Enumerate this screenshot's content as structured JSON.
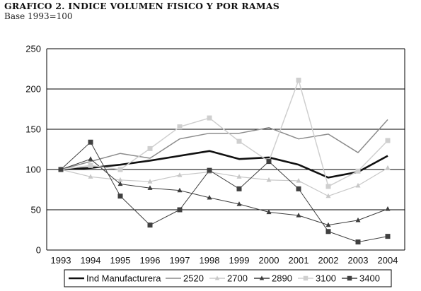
{
  "chart_data": {
    "type": "line",
    "title": "GRAFICO 2. INDICE VOLUMEN FISICO Y POR RAMAS",
    "subtitle": "Base 1993=100",
    "xlabel": "",
    "ylabel": "",
    "ylim": [
      0,
      250
    ],
    "yticks": [
      0,
      50,
      100,
      150,
      200,
      250
    ],
    "grid": "horizontal",
    "legend_position": "bottom",
    "x": [
      "1993",
      "1994",
      "1995",
      "1996",
      "1997",
      "1998",
      "1999",
      "2000",
      "2001",
      "2002",
      "2003",
      "2004"
    ],
    "series": [
      {
        "name": "Ind Manufacturera",
        "color": "#111111",
        "marker": "none",
        "width": 2.6,
        "values": [
          100,
          102,
          106,
          111,
          117,
          123,
          113,
          115,
          106,
          90,
          97,
          117
        ]
      },
      {
        "name": "2520",
        "color": "#8c8c8c",
        "marker": "none",
        "width": 1.5,
        "values": [
          100,
          110,
          120,
          114,
          138,
          145,
          145,
          152,
          138,
          144,
          121,
          162
        ]
      },
      {
        "name": "2700",
        "color": "#c8c8c8",
        "marker": "triangle",
        "width": 1.2,
        "values": [
          100,
          91,
          87,
          85,
          93,
          97,
          91,
          87,
          86,
          67,
          80,
          102
        ]
      },
      {
        "name": "2890",
        "color": "#3c3c3c",
        "marker": "triangle",
        "width": 1.0,
        "values": [
          100,
          113,
          82,
          77,
          74,
          65,
          57,
          47,
          43,
          31,
          37,
          51
        ]
      },
      {
        "name": "3100",
        "color": "#cfcfcf",
        "marker": "square",
        "width": 1.5,
        "values": [
          100,
          105,
          100,
          126,
          153,
          164,
          135,
          110,
          211,
          79,
          98,
          136
        ]
      },
      {
        "name": "3400",
        "color": "#404040",
        "marker": "square",
        "width": 1.0,
        "values": [
          100,
          134,
          67,
          31,
          50,
          99,
          76,
          110,
          76,
          23,
          10,
          17
        ]
      }
    ]
  }
}
